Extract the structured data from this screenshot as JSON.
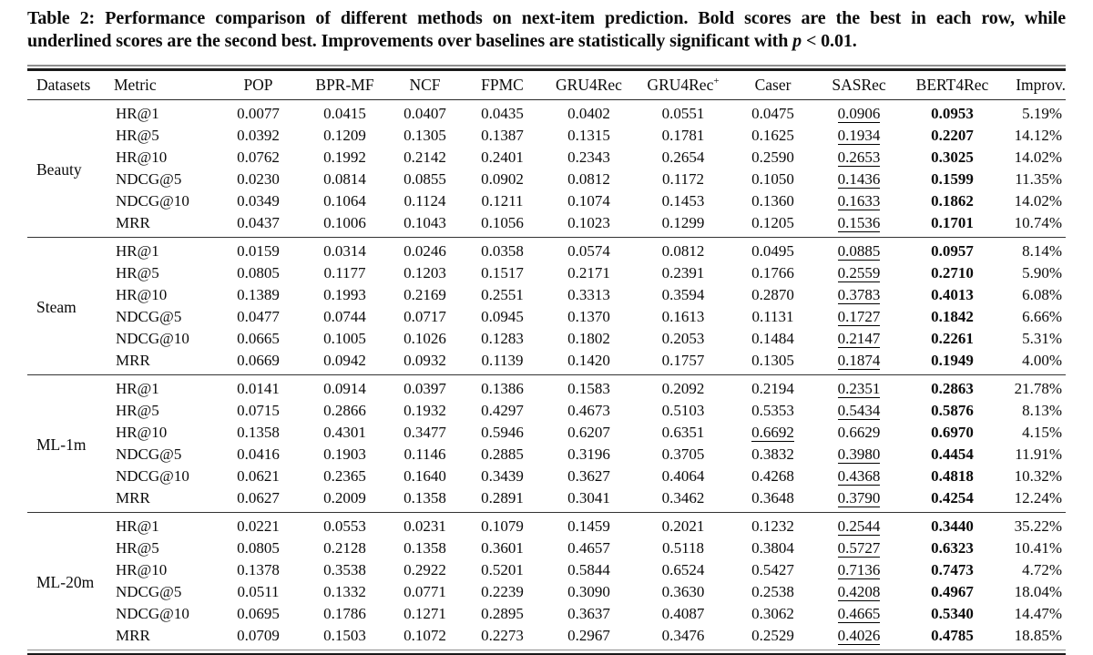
{
  "caption": {
    "line1": "Table 2: Performance comparison of different methods on next-item prediction. Bold scores are the best in each row, while",
    "line2_before": "underlined scores are the second best. Improvements over baselines are statistically significant with ",
    "line2_p": "p",
    "line2_after": " < 0.01."
  },
  "table": {
    "columns": [
      {
        "key": "datasets",
        "label": "Datasets"
      },
      {
        "key": "metric",
        "label": "Metric"
      },
      {
        "key": "pop",
        "label": "POP"
      },
      {
        "key": "bpr-mf",
        "label": "BPR-MF"
      },
      {
        "key": "ncf",
        "label": "NCF"
      },
      {
        "key": "fpmc",
        "label": "FPMC"
      },
      {
        "key": "gru4rec",
        "label": "GRU4Rec"
      },
      {
        "key": "gru4rec-plus",
        "label": "GRU4Rec",
        "sup": "+"
      },
      {
        "key": "caser",
        "label": "Caser"
      },
      {
        "key": "sasrec",
        "label": "SASRec"
      },
      {
        "key": "bert4rec",
        "label": "BERT4Rec"
      },
      {
        "key": "improv",
        "label": "Improv."
      }
    ],
    "sections": [
      {
        "dataset": "Beauty",
        "rows": [
          {
            "metric": "HR@1",
            "values": [
              "0.0077",
              "0.0415",
              "0.0407",
              "0.0435",
              "0.0402",
              "0.0551",
              "0.0475",
              "0.0906",
              "0.0953",
              "5.19%"
            ],
            "underline": 7,
            "bold": 8
          },
          {
            "metric": "HR@5",
            "values": [
              "0.0392",
              "0.1209",
              "0.1305",
              "0.1387",
              "0.1315",
              "0.1781",
              "0.1625",
              "0.1934",
              "0.2207",
              "14.12%"
            ],
            "underline": 7,
            "bold": 8
          },
          {
            "metric": "HR@10",
            "values": [
              "0.0762",
              "0.1992",
              "0.2142",
              "0.2401",
              "0.2343",
              "0.2654",
              "0.2590",
              "0.2653",
              "0.3025",
              "14.02%"
            ],
            "underline": 7,
            "bold": 8
          },
          {
            "metric": "NDCG@5",
            "values": [
              "0.0230",
              "0.0814",
              "0.0855",
              "0.0902",
              "0.0812",
              "0.1172",
              "0.1050",
              "0.1436",
              "0.1599",
              "11.35%"
            ],
            "underline": 7,
            "bold": 8
          },
          {
            "metric": "NDCG@10",
            "values": [
              "0.0349",
              "0.1064",
              "0.1124",
              "0.1211",
              "0.1074",
              "0.1453",
              "0.1360",
              "0.1633",
              "0.1862",
              "14.02%"
            ],
            "underline": 7,
            "bold": 8
          },
          {
            "metric": "MRR",
            "values": [
              "0.0437",
              "0.1006",
              "0.1043",
              "0.1056",
              "0.1023",
              "0.1299",
              "0.1205",
              "0.1536",
              "0.1701",
              "10.74%"
            ],
            "underline": 7,
            "bold": 8
          }
        ]
      },
      {
        "dataset": "Steam",
        "rows": [
          {
            "metric": "HR@1",
            "values": [
              "0.0159",
              "0.0314",
              "0.0246",
              "0.0358",
              "0.0574",
              "0.0812",
              "0.0495",
              "0.0885",
              "0.0957",
              "8.14%"
            ],
            "underline": 7,
            "bold": 8
          },
          {
            "metric": "HR@5",
            "values": [
              "0.0805",
              "0.1177",
              "0.1203",
              "0.1517",
              "0.2171",
              "0.2391",
              "0.1766",
              "0.2559",
              "0.2710",
              "5.90%"
            ],
            "underline": 7,
            "bold": 8
          },
          {
            "metric": "HR@10",
            "values": [
              "0.1389",
              "0.1993",
              "0.2169",
              "0.2551",
              "0.3313",
              "0.3594",
              "0.2870",
              "0.3783",
              "0.4013",
              "6.08%"
            ],
            "underline": 7,
            "bold": 8
          },
          {
            "metric": "NDCG@5",
            "values": [
              "0.0477",
              "0.0744",
              "0.0717",
              "0.0945",
              "0.1370",
              "0.1613",
              "0.1131",
              "0.1727",
              "0.1842",
              "6.66%"
            ],
            "underline": 7,
            "bold": 8
          },
          {
            "metric": "NDCG@10",
            "values": [
              "0.0665",
              "0.1005",
              "0.1026",
              "0.1283",
              "0.1802",
              "0.2053",
              "0.1484",
              "0.2147",
              "0.2261",
              "5.31%"
            ],
            "underline": 7,
            "bold": 8
          },
          {
            "metric": "MRR",
            "values": [
              "0.0669",
              "0.0942",
              "0.0932",
              "0.1139",
              "0.1420",
              "0.1757",
              "0.1305",
              "0.1874",
              "0.1949",
              "4.00%"
            ],
            "underline": 7,
            "bold": 8
          }
        ]
      },
      {
        "dataset": "ML-1m",
        "rows": [
          {
            "metric": "HR@1",
            "values": [
              "0.0141",
              "0.0914",
              "0.0397",
              "0.1386",
              "0.1583",
              "0.2092",
              "0.2194",
              "0.2351",
              "0.2863",
              "21.78%"
            ],
            "underline": 7,
            "bold": 8
          },
          {
            "metric": "HR@5",
            "values": [
              "0.0715",
              "0.2866",
              "0.1932",
              "0.4297",
              "0.4673",
              "0.5103",
              "0.5353",
              "0.5434",
              "0.5876",
              "8.13%"
            ],
            "underline": 7,
            "bold": 8
          },
          {
            "metric": "HR@10",
            "values": [
              "0.1358",
              "0.4301",
              "0.3477",
              "0.5946",
              "0.6207",
              "0.6351",
              "0.6692",
              "0.6629",
              "0.6970",
              "4.15%"
            ],
            "underline": 6,
            "bold": 8
          },
          {
            "metric": "NDCG@5",
            "values": [
              "0.0416",
              "0.1903",
              "0.1146",
              "0.2885",
              "0.3196",
              "0.3705",
              "0.3832",
              "0.3980",
              "0.4454",
              "11.91%"
            ],
            "underline": 7,
            "bold": 8
          },
          {
            "metric": "NDCG@10",
            "values": [
              "0.0621",
              "0.2365",
              "0.1640",
              "0.3439",
              "0.3627",
              "0.4064",
              "0.4268",
              "0.4368",
              "0.4818",
              "10.32%"
            ],
            "underline": 7,
            "bold": 8
          },
          {
            "metric": "MRR",
            "values": [
              "0.0627",
              "0.2009",
              "0.1358",
              "0.2891",
              "0.3041",
              "0.3462",
              "0.3648",
              "0.3790",
              "0.4254",
              "12.24%"
            ],
            "underline": 7,
            "bold": 8
          }
        ]
      },
      {
        "dataset": "ML-20m",
        "rows": [
          {
            "metric": "HR@1",
            "values": [
              "0.0221",
              "0.0553",
              "0.0231",
              "0.1079",
              "0.1459",
              "0.2021",
              "0.1232",
              "0.2544",
              "0.3440",
              "35.22%"
            ],
            "underline": 7,
            "bold": 8
          },
          {
            "metric": "HR@5",
            "values": [
              "0.0805",
              "0.2128",
              "0.1358",
              "0.3601",
              "0.4657",
              "0.5118",
              "0.3804",
              "0.5727",
              "0.6323",
              "10.41%"
            ],
            "underline": 7,
            "bold": 8
          },
          {
            "metric": "HR@10",
            "values": [
              "0.1378",
              "0.3538",
              "0.2922",
              "0.5201",
              "0.5844",
              "0.6524",
              "0.5427",
              "0.7136",
              "0.7473",
              "4.72%"
            ],
            "underline": 7,
            "bold": 8
          },
          {
            "metric": "NDCG@5",
            "values": [
              "0.0511",
              "0.1332",
              "0.0771",
              "0.2239",
              "0.3090",
              "0.3630",
              "0.2538",
              "0.4208",
              "0.4967",
              "18.04%"
            ],
            "underline": 7,
            "bold": 8
          },
          {
            "metric": "NDCG@10",
            "values": [
              "0.0695",
              "0.1786",
              "0.1271",
              "0.2895",
              "0.3637",
              "0.4087",
              "0.3062",
              "0.4665",
              "0.5340",
              "14.47%"
            ],
            "underline": 7,
            "bold": 8
          },
          {
            "metric": "MRR",
            "values": [
              "0.0709",
              "0.1503",
              "0.1072",
              "0.2273",
              "0.2967",
              "0.3476",
              "0.2529",
              "0.4026",
              "0.4785",
              "18.85%"
            ],
            "underline": 7,
            "bold": 8
          }
        ]
      }
    ]
  }
}
